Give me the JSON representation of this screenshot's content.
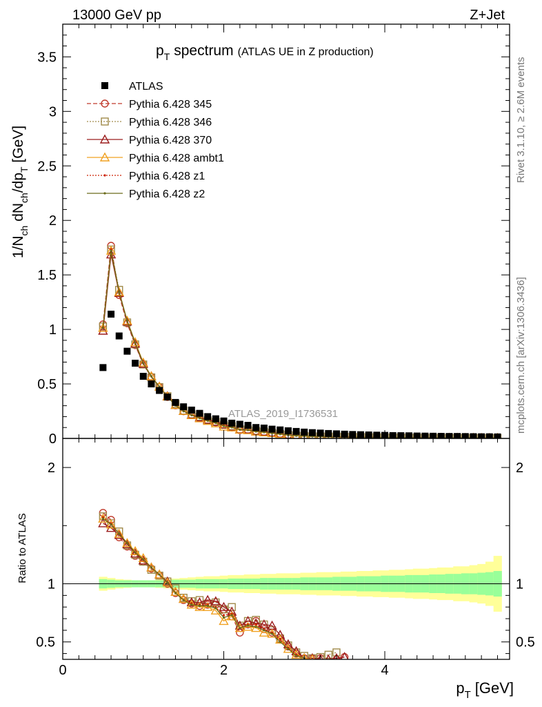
{
  "header": {
    "left": "13000 GeV pp",
    "right": "Z+Jet"
  },
  "side_labels": {
    "rivet": "Rivet 3.1.10, ≥ 2.6M events",
    "mcplots": "mcplots.cern.ch [arXiv:1306.3436]"
  },
  "watermark": "ATLAS_2019_I1736531",
  "chart_data": {
    "type": "scatter",
    "title_main": "p",
    "title_sub": "T",
    "title_rest": "spectrum",
    "title_note": "(ATLAS UE in Z production)",
    "ylabel": {
      "p1": "1/N",
      "s1": "ch",
      "p2": " dN",
      "s2": "ch",
      "p3": "/dp",
      "s3": "T",
      "p4": " [GeV]"
    },
    "xlabel": {
      "main": "p",
      "sub": "T",
      "unit": "[GeV]"
    },
    "ratio_ylabel": "Ratio to ATLAS",
    "xlim": [
      0,
      5.55
    ],
    "ylim": [
      0,
      3.8
    ],
    "ratio_ylim": [
      0.35,
      2.25
    ],
    "xticks": [
      "0",
      "2",
      "4"
    ],
    "yticks": [
      "0",
      "0.5",
      "1",
      "1.5",
      "2",
      "2.5",
      "3",
      "3.5"
    ],
    "ratio_yticks": [
      "0.5",
      "1",
      "2"
    ],
    "x": [
      0.5,
      0.6,
      0.7,
      0.8,
      0.9,
      1.0,
      1.1,
      1.2,
      1.3,
      1.4,
      1.5,
      1.6,
      1.7,
      1.8,
      1.9,
      2.0,
      2.1,
      2.2,
      2.3,
      2.4,
      2.5,
      2.6,
      2.7,
      2.8,
      2.9,
      3.0,
      3.1,
      3.2,
      3.3,
      3.4,
      3.5,
      3.6,
      3.7,
      3.8,
      3.9,
      4.0,
      4.1,
      4.2,
      4.3,
      4.4,
      4.5,
      4.6,
      4.7,
      4.8,
      4.9,
      5.0,
      5.1,
      5.2,
      5.3,
      5.4
    ],
    "atlas": [
      0.65,
      1.14,
      0.94,
      0.8,
      0.69,
      0.57,
      0.5,
      0.44,
      0.38,
      0.33,
      0.29,
      0.26,
      0.23,
      0.2,
      0.18,
      0.16,
      0.14,
      0.13,
      0.12,
      0.1,
      0.095,
      0.085,
      0.078,
      0.07,
      0.064,
      0.058,
      0.053,
      0.049,
      0.045,
      0.042,
      0.039,
      0.036,
      0.034,
      0.032,
      0.03,
      0.028,
      0.026,
      0.025,
      0.024,
      0.022,
      0.021,
      0.02,
      0.019,
      0.018,
      0.018,
      0.017,
      0.016,
      0.015,
      0.015,
      0.014
    ],
    "band_inner": [
      0.04,
      0.035,
      0.03,
      0.03,
      0.03,
      0.03,
      0.03,
      0.03,
      0.03,
      0.035,
      0.035,
      0.035,
      0.04,
      0.04,
      0.04,
      0.04,
      0.045,
      0.045,
      0.045,
      0.045,
      0.05,
      0.05,
      0.05,
      0.05,
      0.05,
      0.055,
      0.055,
      0.055,
      0.055,
      0.06,
      0.06,
      0.06,
      0.065,
      0.065,
      0.065,
      0.07,
      0.07,
      0.07,
      0.075,
      0.075,
      0.075,
      0.08,
      0.08,
      0.085,
      0.085,
      0.09,
      0.09,
      0.095,
      0.1,
      0.11
    ],
    "band_outer": [
      0.06,
      0.05,
      0.04,
      0.035,
      0.03,
      0.03,
      0.03,
      0.035,
      0.04,
      0.045,
      0.05,
      0.055,
      0.06,
      0.065,
      0.065,
      0.07,
      0.075,
      0.075,
      0.08,
      0.08,
      0.085,
      0.085,
      0.09,
      0.09,
      0.09,
      0.095,
      0.095,
      0.1,
      0.1,
      0.1,
      0.105,
      0.105,
      0.11,
      0.11,
      0.115,
      0.115,
      0.12,
      0.12,
      0.125,
      0.13,
      0.13,
      0.135,
      0.14,
      0.14,
      0.15,
      0.15,
      0.16,
      0.17,
      0.19,
      0.24
    ],
    "series": [
      {
        "name": "Pythia 6.428 345",
        "color": "#c0392b",
        "marker": "circle",
        "dash": "6,3",
        "ratio": [
          1.61,
          1.55,
          1.4,
          1.32,
          1.24,
          1.19,
          1.13,
          1.07,
          1.0,
          0.92,
          0.86,
          0.83,
          0.81,
          0.82,
          0.82,
          0.78,
          0.72,
          0.58,
          0.65,
          0.68,
          0.61,
          0.58,
          0.52,
          0.46,
          0.4,
          0.36,
          0.36,
          0.36,
          0.33,
          0.35,
          0.37
        ]
      },
      {
        "name": "Pythia 6.428 346",
        "color": "#a08a4a",
        "marker": "square",
        "dash": "2,2",
        "ratio": [
          1.58,
          1.52,
          1.45,
          1.33,
          1.25,
          1.19,
          1.12,
          1.07,
          1.02,
          0.96,
          0.88,
          0.85,
          0.86,
          0.83,
          0.84,
          0.78,
          0.8,
          0.64,
          0.68,
          0.69,
          0.65,
          0.6,
          0.53,
          0.47,
          0.41,
          0.38,
          0.36,
          0.37,
          0.39,
          0.41
        ]
      },
      {
        "name": "Pythia 6.428 370",
        "color": "#9b1c1c",
        "marker": "triangle",
        "dash": "",
        "ratio": [
          1.52,
          1.48,
          1.42,
          1.34,
          1.26,
          1.2,
          1.14,
          1.08,
          1.02,
          0.93,
          0.87,
          0.84,
          0.84,
          0.86,
          0.85,
          0.8,
          0.76,
          0.64,
          0.68,
          0.66,
          0.65,
          0.64,
          0.56,
          0.48,
          0.42,
          0.36,
          0.36,
          0.35,
          0.35,
          0.36,
          0.37
        ]
      },
      {
        "name": "Pythia 6.428 ambt1",
        "color": "#f0a020",
        "marker": "triangle-open",
        "dash": "",
        "ratio": [
          1.56,
          1.51,
          1.43,
          1.35,
          1.28,
          1.22,
          1.14,
          1.08,
          1.01,
          0.93,
          0.87,
          0.82,
          0.8,
          0.8,
          0.77,
          0.68,
          0.72,
          0.62,
          0.63,
          0.62,
          0.58,
          0.57,
          0.52,
          0.44,
          0.39,
          0.36,
          0.35
        ]
      },
      {
        "name": "Pythia 6.428 z1",
        "color": "#cc2200",
        "marker": "dot",
        "dash": "2,2",
        "ratio": [
          1.57,
          1.52,
          1.43,
          1.35,
          1.27,
          1.21,
          1.14,
          1.08,
          1.01,
          0.92,
          0.86,
          0.83,
          0.82,
          0.82,
          0.8,
          0.73,
          0.74,
          0.62,
          0.65,
          0.65,
          0.61,
          0.58,
          0.52,
          0.45,
          0.39,
          0.36
        ]
      },
      {
        "name": "Pythia 6.428 z2",
        "color": "#6b6b1a",
        "marker": "dot",
        "dash": "",
        "ratio": [
          1.56,
          1.51,
          1.43,
          1.35,
          1.27,
          1.21,
          1.14,
          1.08,
          1.01,
          0.92,
          0.86,
          0.82,
          0.81,
          0.81,
          0.79,
          0.71,
          0.73,
          0.62,
          0.64,
          0.63,
          0.6,
          0.57,
          0.5,
          0.44,
          0.38,
          0.36
        ]
      }
    ]
  }
}
